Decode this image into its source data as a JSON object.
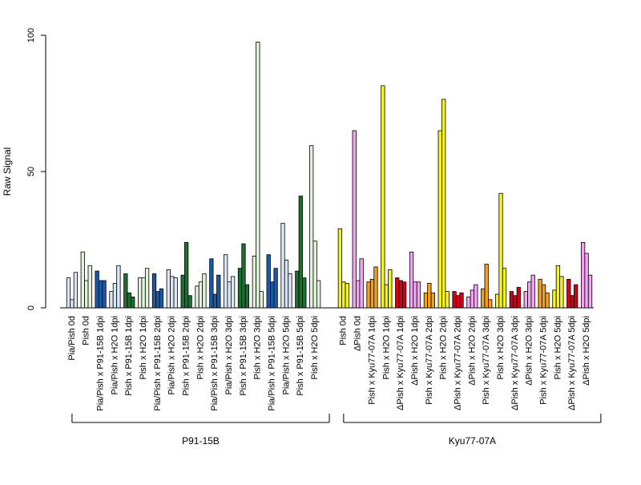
{
  "chart_data": {
    "type": "bar",
    "ylabel": "Raw Signal",
    "ylim": [
      0,
      100
    ],
    "yticks": [
      0,
      50,
      100
    ],
    "groups": [
      {
        "label": "P91-15B",
        "first": 0,
        "last": 18
      },
      {
        "label": "Kyu77-07A",
        "first": 19,
        "last": 37
      }
    ],
    "colors": {
      "P91-15B": {
        "Pia/Pish 0d": "#dbe7f5",
        "Pish 0d": "#e3f2dc",
        "Pia/Pish x P91-15B": "#1d5aa6",
        "Pia/Pish x H2O": "#dbe7f5",
        "Pish x P91-15B": "#1e7030",
        "Pish x H2O": "#e3f2dc"
      },
      "Kyu77-07A": {
        "Pish 0d": "#f5f51d",
        "ΔPish 0d": "#f2a5f2",
        "Pish x Kyu77-07A": "#f5a01c",
        "ΔPish x Kyu77-07A": "#d4001a",
        "ΔPish x H2O": "#f2a5f2",
        "Pish x H2O": "#f5f51d"
      }
    },
    "categories": [
      {
        "label": "Pia/Pish 0d",
        "color": "#dbe7f5",
        "values": [
          11,
          3,
          13
        ]
      },
      {
        "label": "Pish 0d",
        "color": "#e3f2dc",
        "values": [
          20.5,
          10,
          15.5
        ]
      },
      {
        "label": "Pia/Pish x P91-15B 1dpi",
        "color": "#1d5aa6",
        "values": [
          13.5,
          10,
          10
        ]
      },
      {
        "label": "Pia/Pish x H2O 1dpi",
        "color": "#dbe7f5",
        "values": [
          6,
          9,
          15.5
        ]
      },
      {
        "label": "Pish x P91-15B 1dpi",
        "color": "#1e7030",
        "values": [
          12.5,
          5.5,
          4
        ]
      },
      {
        "label": "Pish x H2O 1dpi",
        "color": "#e3f2dc",
        "values": [
          11,
          11,
          14.5
        ]
      },
      {
        "label": "Pia/Pish x P91-15B 2dpi",
        "color": "#1d5aa6",
        "values": [
          12.5,
          6,
          7
        ]
      },
      {
        "label": "Pia/Pish x H2O 2dpi",
        "color": "#dbe7f5",
        "values": [
          14,
          11.5,
          11
        ]
      },
      {
        "label": "Pish x P91-15B 2dpi",
        "color": "#1e7030",
        "values": [
          12,
          24,
          4.5
        ]
      },
      {
        "label": "Pish x H2O 2dpi",
        "color": "#e3f2dc",
        "values": [
          8,
          9.5,
          12.5
        ]
      },
      {
        "label": "Pia/Pish x P91-15B 3dpi",
        "color": "#1d5aa6",
        "values": [
          18,
          5,
          12
        ]
      },
      {
        "label": "Pia/Pish x H2O 3dpi",
        "color": "#dbe7f5",
        "values": [
          19.5,
          9.5,
          11.5
        ]
      },
      {
        "label": "Pish x P91-15B 3dpi",
        "color": "#1e7030",
        "values": [
          14.5,
          23.5,
          8.5
        ]
      },
      {
        "label": "Pish x H2O 3dpi",
        "color": "#e3f2dc",
        "values": [
          19,
          97.5,
          6
        ]
      },
      {
        "label": "Pia/Pish x P91-15B 5dpi",
        "color": "#1d5aa6",
        "values": [
          19.5,
          9.5,
          14.5
        ]
      },
      {
        "label": "Pia/Pish x H2O 5dpi",
        "color": "#dbe7f5",
        "values": [
          31,
          17.5,
          12.5
        ]
      },
      {
        "label": "Pish x P91-15B 5dpi",
        "color": "#1e7030",
        "values": [
          13.5,
          41,
          11
        ]
      },
      {
        "label": "Pish x H2O 5dpi",
        "color": "#e3f2dc",
        "values": [
          59.5,
          24.5,
          10
        ]
      },
      {
        "label": "",
        "color": "#ffffff",
        "values": []
      },
      {
        "label": "Pish 0d",
        "color": "#f5f51d",
        "values": [
          29,
          9.5,
          9
        ]
      },
      {
        "label": "ΔPish 0d",
        "color": "#f2a5f2",
        "values": [
          65,
          10,
          18
        ]
      },
      {
        "label": "Pish x Kyu77-07A 1dpi",
        "color": "#f5a01c",
        "values": [
          9.5,
          10.5,
          15
        ]
      },
      {
        "label": "Pish x H2O 1dpi",
        "color": "#f5f51d",
        "values": [
          81.5,
          8.5,
          14
        ]
      },
      {
        "label": "ΔPish x Kyu77-07A 1dpi",
        "color": "#d4001a",
        "values": [
          11,
          10,
          9.5
        ]
      },
      {
        "label": "ΔPish x H2O 1dpi",
        "color": "#f2a5f2",
        "values": [
          20.5,
          9.5,
          9.5
        ]
      },
      {
        "label": "Pish x Kyu77-07A 2dpi",
        "color": "#f5a01c",
        "values": [
          5.5,
          9,
          5.5
        ]
      },
      {
        "label": "Pish x H2O 2dpi",
        "color": "#f5f51d",
        "values": [
          65,
          76.5,
          6
        ]
      },
      {
        "label": "ΔPish x Kyu77-07A 2dpi",
        "color": "#d4001a",
        "values": [
          6,
          4.5,
          5.5
        ]
      },
      {
        "label": "ΔPish x H2O 2dpi",
        "color": "#f2a5f2",
        "values": [
          4,
          6.5,
          8.5
        ]
      },
      {
        "label": "Pish x Kyu77-07A 3dpi",
        "color": "#f5a01c",
        "values": [
          7,
          16,
          3
        ]
      },
      {
        "label": "Pish x H2O 3dpi",
        "color": "#f5f51d",
        "values": [
          5,
          42,
          14.5
        ]
      },
      {
        "label": "ΔPish x Kyu77-07A 3dpi",
        "color": "#d4001a",
        "values": [
          6,
          4.5,
          7.5
        ]
      },
      {
        "label": "ΔPish x H2O 3dpi",
        "color": "#f2a5f2",
        "values": [
          6,
          9.5,
          12
        ]
      },
      {
        "label": "Pish x Kyu77-07A 5dpi",
        "color": "#f5a01c",
        "values": [
          10.5,
          8.5,
          5.5
        ]
      },
      {
        "label": "Pish x H2O 5dpi",
        "color": "#f5f51d",
        "values": [
          6.5,
          15.5,
          11.5
        ]
      },
      {
        "label": "ΔPish x Kyu77-07A 5dpi",
        "color": "#d4001a",
        "values": [
          10.5,
          4.5,
          8.5
        ]
      },
      {
        "label": "ΔPish x H2O 5dpi",
        "color": "#f2a5f2",
        "values": [
          24,
          20,
          12
        ]
      }
    ]
  }
}
